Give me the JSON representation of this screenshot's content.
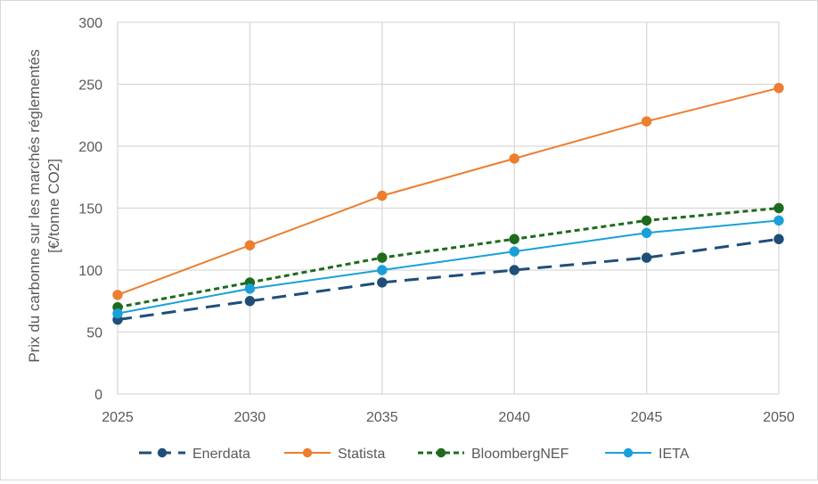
{
  "chart_data": {
    "type": "line",
    "title": "",
    "xlabel": "",
    "ylabel": "Prix du carbonne sur les marchés réglementés [€/tonne CO2]",
    "ylabel_lines": [
      "Prix du carbonne sur les marchés réglementés",
      "[€/tonne CO2]"
    ],
    "x": [
      "2025",
      "2030",
      "2035",
      "2040",
      "2045",
      "2050"
    ],
    "yticks": [
      "0",
      "50",
      "100",
      "150",
      "200",
      "250",
      "300"
    ],
    "ylim": [
      0,
      300
    ],
    "grid": true,
    "legend_position": "bottom",
    "series": [
      {
        "name": "Enerdata",
        "values": [
          60,
          75,
          90,
          100,
          110,
          125
        ],
        "color": "#1f4e79",
        "dash": "long-dash",
        "marker": "circle"
      },
      {
        "name": "Statista",
        "values": [
          80,
          120,
          160,
          190,
          220,
          247
        ],
        "color": "#ed7d31",
        "dash": "solid",
        "marker": "circle"
      },
      {
        "name": "BloombergNEF",
        "values": [
          70,
          90,
          110,
          125,
          140,
          150
        ],
        "color": "#1e6b1e",
        "dash": "short-dash",
        "marker": "circle"
      },
      {
        "name": "IETA",
        "values": [
          65,
          85,
          100,
          115,
          130,
          140
        ],
        "color": "#1aa0d8",
        "dash": "solid",
        "marker": "circle"
      }
    ]
  }
}
